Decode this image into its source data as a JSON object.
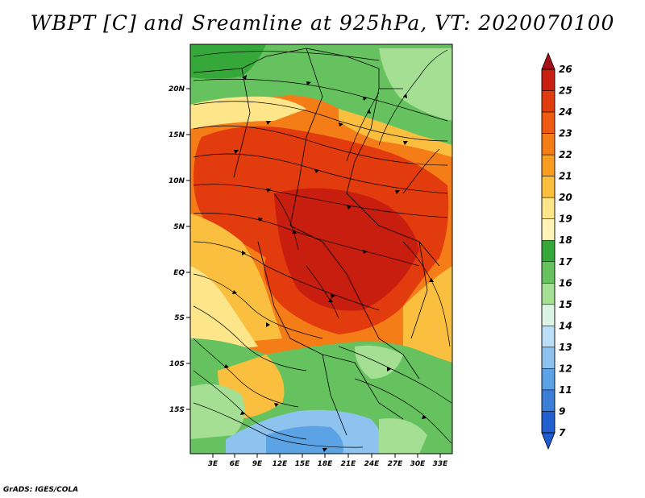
{
  "title": "WBPT [C] and Sreamline at 925hPa, VT: 2020070100",
  "footer": "GrADS: IGES/COLA",
  "lat_labels": [
    "20N",
    "15N",
    "10N",
    "5N",
    "EQ",
    "5S",
    "10S",
    "15S"
  ],
  "lon_labels": [
    "3E",
    "6E",
    "9E",
    "12E",
    "15E",
    "18E",
    "21E",
    "24E",
    "27E",
    "30E",
    "33E"
  ],
  "colorbar": {
    "labels": [
      "26",
      "25",
      "24",
      "23",
      "22",
      "21",
      "20",
      "19",
      "18",
      "17",
      "16",
      "15",
      "14",
      "13",
      "12",
      "11",
      "9",
      "7"
    ],
    "colors": [
      "#a50f15",
      "#c81e0f",
      "#e23b0e",
      "#ef5a12",
      "#f47d17",
      "#f89d20",
      "#fbbf3f",
      "#fde68a",
      "#fff3b5",
      "#36a83a",
      "#66c25e",
      "#a4df94",
      "#dcf5e2",
      "#b9def6",
      "#8ec2ef",
      "#5ca3e6",
      "#3a7ed7",
      "#1f5fd0",
      "#1e5ccf"
    ]
  }
}
